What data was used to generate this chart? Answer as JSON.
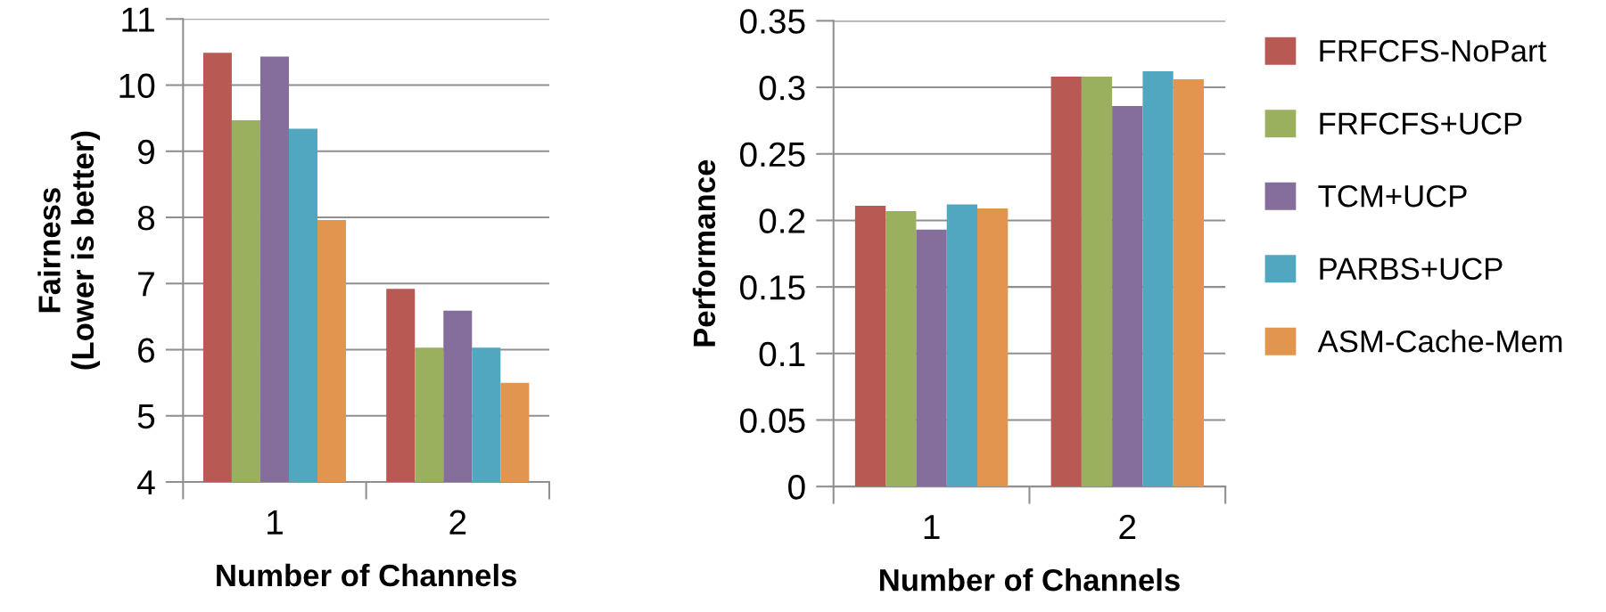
{
  "chart_data": [
    {
      "type": "bar",
      "categories": [
        "1",
        "2"
      ],
      "xlabel": "Number of Channels",
      "ylabel": "Fairness\n(Lower is better)",
      "ylim": [
        4,
        11
      ],
      "yticks": [
        4,
        5,
        6,
        7,
        8,
        9,
        10,
        11
      ],
      "grid": "y",
      "series": [
        {
          "color": "#b85a53",
          "values": [
            10.49,
            6.92
          ]
        },
        {
          "color": "#9bb05f",
          "values": [
            9.47,
            6.03
          ]
        },
        {
          "color": "#856d9c",
          "values": [
            10.43,
            6.59
          ]
        },
        {
          "color": "#50a7bf",
          "values": [
            9.34,
            6.03
          ]
        },
        {
          "color": "#e2954e",
          "values": [
            7.96,
            5.5
          ]
        }
      ]
    },
    {
      "type": "bar",
      "categories": [
        "1",
        "2"
      ],
      "xlabel": "Number of Channels",
      "ylabel": "Performance",
      "ylim": [
        0,
        0.35
      ],
      "yticks": [
        0,
        0.05,
        0.1,
        0.15,
        0.2,
        0.25,
        0.3,
        0.35
      ],
      "grid": "y",
      "legend": "right",
      "series": [
        {
          "name": "FRFCFS-NoPart",
          "color": "#b85a53",
          "values": [
            0.211,
            0.308
          ]
        },
        {
          "name": "FRFCFS+UCP",
          "color": "#9bb05f",
          "values": [
            0.207,
            0.308
          ]
        },
        {
          "name": "TCM+UCP",
          "color": "#856d9c",
          "values": [
            0.193,
            0.286
          ]
        },
        {
          "name": "PARBS+UCP",
          "color": "#50a7bf",
          "values": [
            0.212,
            0.312
          ]
        },
        {
          "name": "ASM-Cache-Mem",
          "color": "#e2954e",
          "values": [
            0.209,
            0.306
          ]
        }
      ]
    }
  ]
}
